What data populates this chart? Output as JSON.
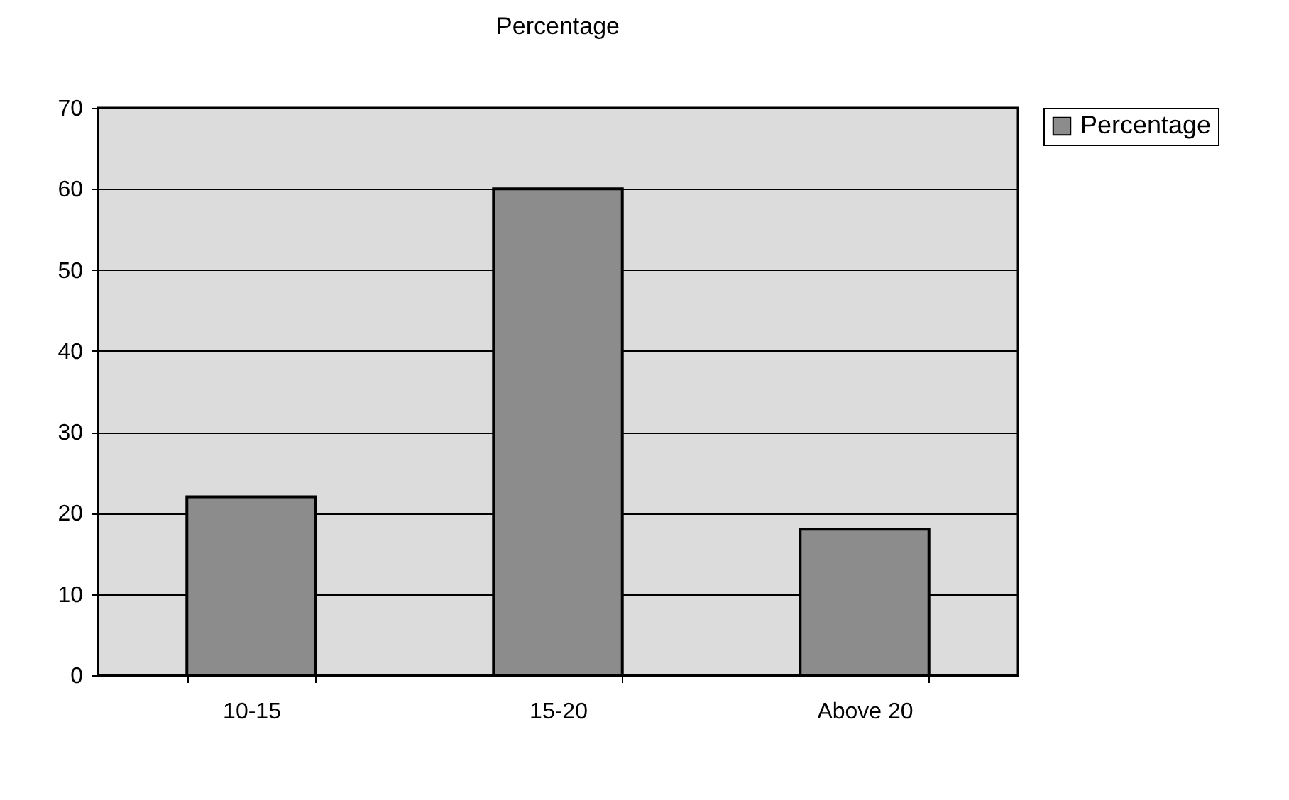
{
  "chart_data": {
    "type": "bar",
    "title": "Percentage",
    "categories": [
      "10-15",
      "15-20",
      "Above 20"
    ],
    "series": [
      {
        "name": "Percentage",
        "color": "#8c8c8c",
        "values": [
          22,
          60,
          18
        ]
      }
    ],
    "ylim": [
      0,
      70
    ],
    "yticks": [
      0,
      10,
      20,
      30,
      40,
      50,
      60,
      70
    ],
    "grid": "y",
    "legend": "right"
  }
}
